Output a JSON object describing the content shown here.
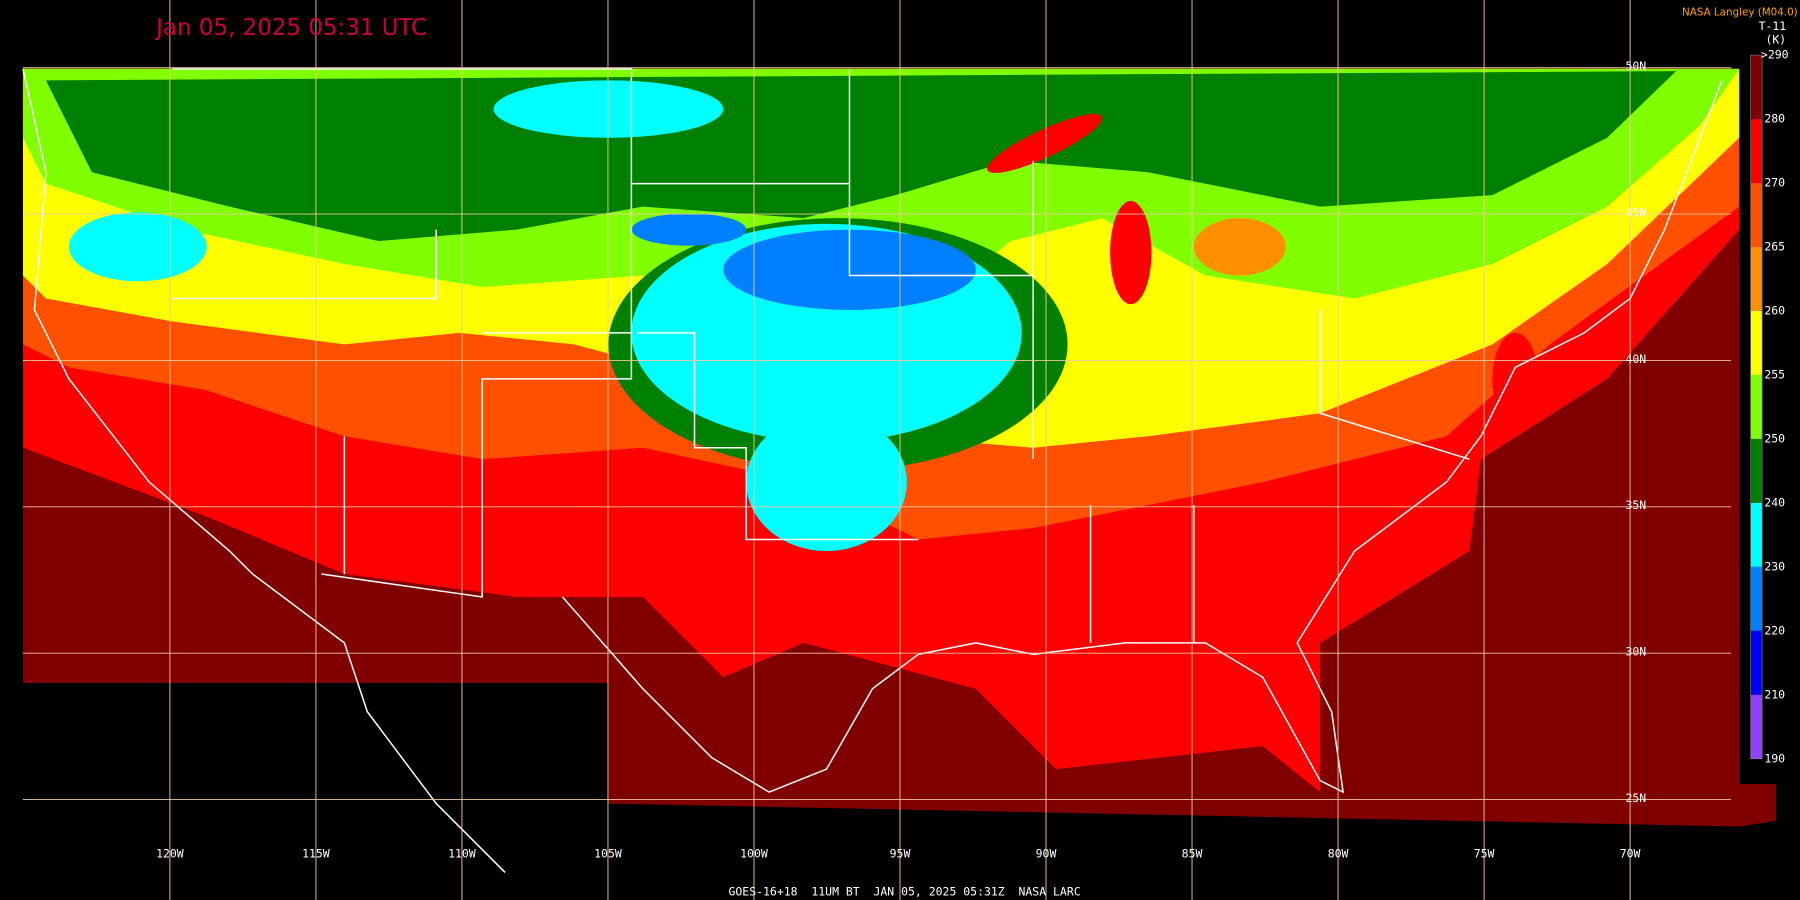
{
  "timestamp": "Jan 05, 2025 05:31 UTC",
  "credit": "NASA Langley (M04.0)",
  "product": "T-11",
  "units": "(K)",
  "colorbar": {
    "labels": [
      ">290",
      "280",
      "270",
      "265",
      "260",
      "255",
      "250",
      "240",
      "230",
      "220",
      "210",
      "190"
    ],
    "colors": [
      "#800000",
      "#ff0000",
      "#ff5000",
      "#ff9000",
      "#ffff00",
      "#80ff00",
      "#008000",
      "#00ffff",
      "#0080ff",
      "#0000ff",
      "#9040ff"
    ]
  },
  "longitude_labels": [
    "120W",
    "115W",
    "110W",
    "105W",
    "100W",
    "95W",
    "90W",
    "85W",
    "80W",
    "75W",
    "70W"
  ],
  "latitude_labels": [
    "50N",
    "45N",
    "40N",
    "35N",
    "30N",
    "25N"
  ],
  "footer": "GOES-16+18  11UM BT  JAN 05, 2025 05:31Z  NASA LARC"
}
